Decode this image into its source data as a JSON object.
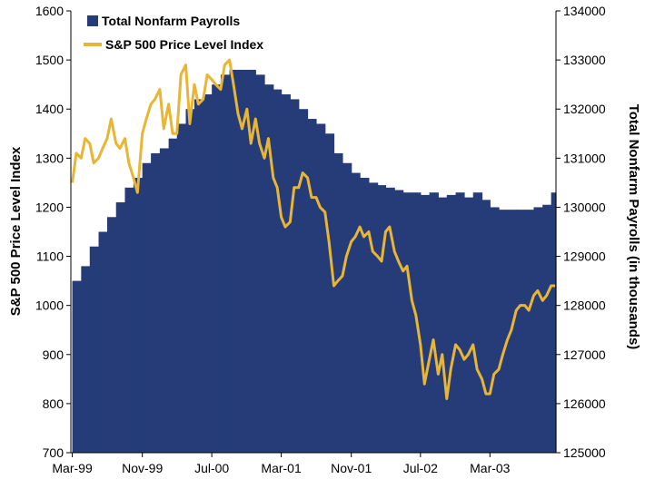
{
  "chart_data": {
    "type": "bar+line",
    "legend_position": "top-left",
    "grid": false,
    "x_tick_labels": [
      "Mar-99",
      "Nov-99",
      "Jul-00",
      "Mar-01",
      "Nov-01",
      "Jul-02",
      "Mar-03"
    ],
    "y_left": {
      "label": "S&P 500 Price Level Index",
      "range": [
        700,
        1600
      ],
      "ticks": [
        "700",
        "800",
        "900",
        "1000",
        "1100",
        "1200",
        "1300",
        "1400",
        "1500",
        "1600"
      ]
    },
    "y_right": {
      "label": "Total Nonfarm Payrolls (in thousands)",
      "range": [
        125000,
        134000
      ],
      "ticks": [
        "125000",
        "126000",
        "127000",
        "128000",
        "129000",
        "130000",
        "131000",
        "132000",
        "133000",
        "134000"
      ]
    },
    "payrolls": {
      "name": "Total Nonfarm Payrolls",
      "color": "#253c78",
      "axis": "right",
      "months": [
        "1999-03",
        "1999-04",
        "1999-05",
        "1999-06",
        "1999-07",
        "1999-08",
        "1999-09",
        "1999-10",
        "1999-11",
        "1999-12",
        "2000-01",
        "2000-02",
        "2000-03",
        "2000-04",
        "2000-05",
        "2000-06",
        "2000-07",
        "2000-08",
        "2000-09",
        "2000-10",
        "2000-11",
        "2000-12",
        "2001-01",
        "2001-02",
        "2001-03",
        "2001-04",
        "2001-05",
        "2001-06",
        "2001-07",
        "2001-08",
        "2001-09",
        "2001-10",
        "2001-11",
        "2001-12",
        "2002-01",
        "2002-02",
        "2002-03",
        "2002-04",
        "2002-05",
        "2002-06",
        "2002-07",
        "2002-08",
        "2002-09",
        "2002-10",
        "2002-11",
        "2002-12",
        "2003-01",
        "2003-02",
        "2003-03",
        "2003-04",
        "2003-05",
        "2003-06",
        "2003-07",
        "2003-08",
        "2003-09",
        "2003-10"
      ],
      "values": [
        128500,
        128800,
        129200,
        129500,
        129800,
        130100,
        130400,
        130600,
        130900,
        131100,
        131200,
        131400,
        131700,
        132000,
        132200,
        132300,
        132500,
        132700,
        132800,
        132800,
        132800,
        132700,
        132500,
        132400,
        132300,
        132200,
        132000,
        131800,
        131700,
        131500,
        131100,
        130900,
        130700,
        130600,
        130500,
        130450,
        130400,
        130350,
        130300,
        130300,
        130250,
        130300,
        130200,
        130250,
        130300,
        130200,
        130300,
        130150,
        130000,
        129950,
        129950,
        129950,
        129950,
        130000,
        130050,
        130300
      ]
    },
    "sp500": {
      "name": "S&P 500 Price Level Index",
      "color": "#e8b534",
      "axis": "left",
      "dates": [
        "1999-03-01",
        "1999-03-15",
        "1999-04-01",
        "1999-04-15",
        "1999-05-01",
        "1999-05-15",
        "1999-06-01",
        "1999-06-15",
        "1999-07-01",
        "1999-07-15",
        "1999-08-01",
        "1999-08-15",
        "1999-09-01",
        "1999-09-15",
        "1999-10-01",
        "1999-10-15",
        "1999-11-01",
        "1999-11-15",
        "1999-12-01",
        "1999-12-15",
        "2000-01-01",
        "2000-01-15",
        "2000-02-01",
        "2000-02-15",
        "2000-03-01",
        "2000-03-15",
        "2000-04-01",
        "2000-04-15",
        "2000-05-01",
        "2000-05-15",
        "2000-06-01",
        "2000-06-15",
        "2000-07-01",
        "2000-07-15",
        "2000-08-01",
        "2000-08-15",
        "2000-09-01",
        "2000-09-15",
        "2000-10-01",
        "2000-10-15",
        "2000-11-01",
        "2000-11-15",
        "2000-12-01",
        "2000-12-15",
        "2001-01-01",
        "2001-01-15",
        "2001-02-01",
        "2001-02-15",
        "2001-03-01",
        "2001-03-15",
        "2001-04-01",
        "2001-04-15",
        "2001-05-01",
        "2001-05-15",
        "2001-06-01",
        "2001-06-15",
        "2001-07-01",
        "2001-07-15",
        "2001-08-01",
        "2001-08-15",
        "2001-09-01",
        "2001-09-15",
        "2001-10-01",
        "2001-10-15",
        "2001-11-01",
        "2001-11-15",
        "2001-12-01",
        "2001-12-15",
        "2002-01-01",
        "2002-01-15",
        "2002-02-01",
        "2002-02-15",
        "2002-03-01",
        "2002-03-15",
        "2002-04-01",
        "2002-04-15",
        "2002-05-01",
        "2002-05-15",
        "2002-06-01",
        "2002-06-15",
        "2002-07-01",
        "2002-07-15",
        "2002-08-01",
        "2002-08-15",
        "2002-09-01",
        "2002-09-15",
        "2002-10-01",
        "2002-10-15",
        "2002-11-01",
        "2002-11-15",
        "2002-12-01",
        "2002-12-15",
        "2003-01-01",
        "2003-01-15",
        "2003-02-01",
        "2003-02-15",
        "2003-03-01",
        "2003-03-15",
        "2003-04-01",
        "2003-04-15",
        "2003-05-01",
        "2003-05-15",
        "2003-06-01",
        "2003-06-15",
        "2003-07-01",
        "2003-07-15",
        "2003-08-01",
        "2003-08-15",
        "2003-09-01",
        "2003-09-15",
        "2003-10-01",
        "2003-10-15"
      ],
      "values": [
        1250,
        1310,
        1300,
        1340,
        1330,
        1290,
        1300,
        1320,
        1340,
        1380,
        1330,
        1320,
        1340,
        1290,
        1260,
        1230,
        1350,
        1380,
        1410,
        1420,
        1440,
        1360,
        1410,
        1350,
        1350,
        1470,
        1490,
        1370,
        1450,
        1410,
        1420,
        1470,
        1460,
        1450,
        1440,
        1490,
        1500,
        1450,
        1390,
        1360,
        1400,
        1330,
        1380,
        1330,
        1300,
        1340,
        1260,
        1240,
        1180,
        1160,
        1170,
        1240,
        1240,
        1270,
        1260,
        1220,
        1220,
        1200,
        1190,
        1130,
        1040,
        1050,
        1060,
        1100,
        1130,
        1140,
        1160,
        1140,
        1150,
        1110,
        1100,
        1090,
        1150,
        1160,
        1110,
        1090,
        1070,
        1080,
        1010,
        980,
        920,
        840,
        890,
        930,
        860,
        900,
        810,
        870,
        920,
        910,
        890,
        900,
        920,
        870,
        850,
        820,
        820,
        860,
        870,
        900,
        930,
        950,
        990,
        1000,
        1000,
        990,
        1020,
        1030,
        1010,
        1020,
        1040,
        1040
      ]
    }
  },
  "legend": [
    {
      "label": "Total Nonfarm Payrolls",
      "marker": "square",
      "color": "#253c78"
    },
    {
      "label": "S&P 500 Price Level Index",
      "marker": "line",
      "color": "#e8b534"
    }
  ]
}
